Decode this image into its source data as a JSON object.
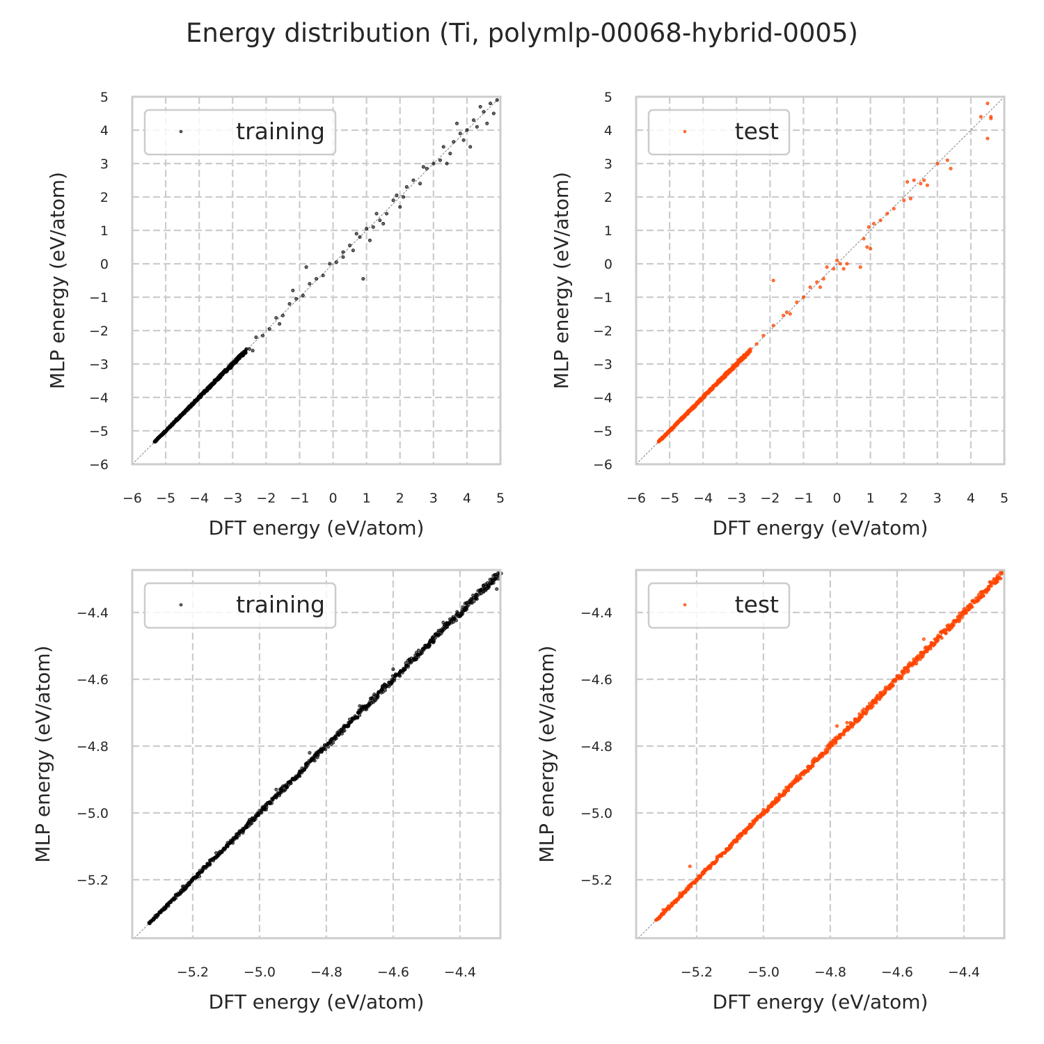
{
  "figure": {
    "title": "Energy distribution (Ti, polymlp-00068-hybrid-0005)"
  },
  "colors": {
    "training": "#000000",
    "test": "#ff4500",
    "grid": "#cccccc",
    "spine": "#cccccc",
    "diagonal": "#808080"
  },
  "chart_data": [
    {
      "type": "scatter",
      "panel": "top-left",
      "series_name": "training",
      "legend": "training",
      "legend_position": "top-left",
      "xlabel": "DFT energy (eV/atom)",
      "ylabel": "MLP energy (eV/atom)",
      "xlim": [
        -6,
        5
      ],
      "ylim": [
        -6,
        5
      ],
      "xticks": [
        "−6",
        "−5",
        "−4",
        "−3",
        "−2",
        "−1",
        "0",
        "1",
        "2",
        "3",
        "4",
        "5"
      ],
      "yticks": [
        "−6",
        "−5",
        "−4",
        "−3",
        "−2",
        "−1",
        "0",
        "1",
        "2",
        "3",
        "4",
        "5"
      ],
      "xtick_values": [
        -6,
        -5,
        -4,
        -3,
        -2,
        -1,
        0,
        1,
        2,
        3,
        4,
        5
      ],
      "ytick_values": [
        -6,
        -5,
        -4,
        -3,
        -2,
        -1,
        0,
        1,
        2,
        3,
        4,
        5
      ],
      "grid": true,
      "points": [
        [
          -5.33,
          -5.33
        ],
        [
          -5.1,
          -5.1
        ],
        [
          -4.8,
          -4.8
        ],
        [
          -4.5,
          -4.5
        ],
        [
          -4.2,
          -4.21
        ],
        [
          -3.9,
          -3.9
        ],
        [
          -3.6,
          -3.61
        ],
        [
          -3.3,
          -3.28
        ],
        [
          -3.0,
          -3.0
        ],
        [
          -2.8,
          -2.75
        ],
        [
          -2.5,
          -2.55
        ],
        [
          -2.3,
          -2.2
        ],
        [
          -2.1,
          -2.15
        ],
        [
          -1.9,
          -1.95
        ],
        [
          -1.7,
          -1.62
        ],
        [
          -1.5,
          -1.55
        ],
        [
          -1.3,
          -1.2
        ],
        [
          -1.1,
          -1.05
        ],
        [
          -0.9,
          -0.95
        ],
        [
          -0.7,
          -0.6
        ],
        [
          -0.5,
          -0.45
        ],
        [
          -0.3,
          -0.35
        ],
        [
          -0.1,
          0.0
        ],
        [
          0.1,
          0.05
        ],
        [
          0.3,
          0.35
        ],
        [
          0.5,
          0.55
        ],
        [
          0.6,
          0.4
        ],
        [
          0.8,
          0.8
        ],
        [
          0.9,
          -0.45
        ],
        [
          1.0,
          1.05
        ],
        [
          1.2,
          1.1
        ],
        [
          1.3,
          1.5
        ],
        [
          1.4,
          1.3
        ],
        [
          1.6,
          1.5
        ],
        [
          1.8,
          1.9
        ],
        [
          1.9,
          2.05
        ],
        [
          2.1,
          2.0
        ],
        [
          2.2,
          2.3
        ],
        [
          2.4,
          2.5
        ],
        [
          2.6,
          2.4
        ],
        [
          2.8,
          2.85
        ],
        [
          3.0,
          3.0
        ],
        [
          3.2,
          3.1
        ],
        [
          3.3,
          3.5
        ],
        [
          3.5,
          3.3
        ],
        [
          3.6,
          3.65
        ],
        [
          3.8,
          3.9
        ],
        [
          3.9,
          3.7
        ],
        [
          4.0,
          4.0
        ],
        [
          4.1,
          3.5
        ],
        [
          4.2,
          4.3
        ],
        [
          4.3,
          4.1
        ],
        [
          4.5,
          4.55
        ],
        [
          4.6,
          4.2
        ],
        [
          4.7,
          4.8
        ],
        [
          4.8,
          4.5
        ],
        [
          4.9,
          4.9
        ],
        [
          -0.8,
          -0.1
        ],
        [
          -1.2,
          -0.8
        ],
        [
          0.3,
          0.2
        ],
        [
          1.5,
          1.2
        ],
        [
          2.0,
          1.7
        ],
        [
          3.4,
          3.0
        ],
        [
          -2.4,
          -2.6
        ],
        [
          -1.6,
          -1.8
        ],
        [
          0.7,
          0.9
        ],
        [
          1.1,
          0.7
        ],
        [
          2.7,
          2.9
        ],
        [
          4.4,
          4.7
        ],
        [
          3.7,
          4.2
        ]
      ]
    },
    {
      "type": "scatter",
      "panel": "top-right",
      "series_name": "test",
      "legend": "test",
      "legend_position": "top-left",
      "xlabel": "DFT energy (eV/atom)",
      "ylabel": "MLP energy (eV/atom)",
      "xlim": [
        -6,
        5
      ],
      "ylim": [
        -6,
        5
      ],
      "xticks": [
        "−6",
        "−5",
        "−4",
        "−3",
        "−2",
        "−1",
        "0",
        "1",
        "2",
        "3",
        "4",
        "5"
      ],
      "yticks": [
        "−6",
        "−5",
        "−4",
        "−3",
        "−2",
        "−1",
        "0",
        "1",
        "2",
        "3",
        "4",
        "5"
      ],
      "xtick_values": [
        -6,
        -5,
        -4,
        -3,
        -2,
        -1,
        0,
        1,
        2,
        3,
        4,
        5
      ],
      "ytick_values": [
        -6,
        -5,
        -4,
        -3,
        -2,
        -1,
        0,
        1,
        2,
        3,
        4,
        5
      ],
      "grid": true,
      "points": [
        [
          -5.33,
          -5.33
        ],
        [
          -5.1,
          -5.1
        ],
        [
          -4.8,
          -4.8
        ],
        [
          -4.5,
          -4.5
        ],
        [
          -4.2,
          -4.2
        ],
        [
          -3.9,
          -3.9
        ],
        [
          -3.6,
          -3.6
        ],
        [
          -3.3,
          -3.3
        ],
        [
          -3.0,
          -3.0
        ],
        [
          -2.7,
          -2.7
        ],
        [
          -2.4,
          -2.4
        ],
        [
          -2.2,
          -2.15
        ],
        [
          -1.9,
          -1.85
        ],
        [
          -1.6,
          -1.55
        ],
        [
          -1.5,
          -1.45
        ],
        [
          -1.4,
          -1.5
        ],
        [
          -1.2,
          -1.15
        ],
        [
          -1.0,
          -1.0
        ],
        [
          -1.9,
          -0.5
        ],
        [
          -0.8,
          -0.7
        ],
        [
          -0.6,
          -0.55
        ],
        [
          -0.4,
          -0.45
        ],
        [
          -0.5,
          -0.7
        ],
        [
          -0.3,
          -0.1
        ],
        [
          -0.1,
          -0.15
        ],
        [
          0.0,
          0.1
        ],
        [
          0.2,
          -0.15
        ],
        [
          0.3,
          0.0
        ],
        [
          0.1,
          0.0
        ],
        [
          0.7,
          -0.1
        ],
        [
          0.8,
          0.75
        ],
        [
          0.9,
          0.5
        ],
        [
          1.0,
          0.45
        ],
        [
          0.95,
          1.1
        ],
        [
          1.1,
          1.2
        ],
        [
          1.3,
          1.3
        ],
        [
          1.5,
          1.5
        ],
        [
          1.7,
          1.65
        ],
        [
          2.0,
          1.9
        ],
        [
          2.1,
          2.45
        ],
        [
          2.3,
          2.5
        ],
        [
          2.2,
          1.95
        ],
        [
          2.5,
          2.4
        ],
        [
          2.6,
          2.5
        ],
        [
          2.7,
          2.35
        ],
        [
          3.0,
          3.0
        ],
        [
          3.3,
          3.1
        ],
        [
          3.4,
          2.85
        ],
        [
          4.5,
          4.8
        ],
        [
          4.6,
          4.4
        ],
        [
          4.6,
          4.35
        ],
        [
          4.5,
          3.75
        ],
        [
          4.3,
          4.4
        ]
      ]
    },
    {
      "type": "scatter",
      "panel": "bottom-left",
      "series_name": "training",
      "legend": "training",
      "legend_position": "top-left",
      "xlabel": "DFT energy (eV/atom)",
      "ylabel": "MLP energy (eV/atom)",
      "xlim": [
        -5.381,
        -4.279
      ],
      "ylim": [
        -5.375,
        -4.273
      ],
      "xticks": [
        "−5.2",
        "−5.0",
        "−4.8",
        "−4.6",
        "−4.4"
      ],
      "yticks": [
        "−5.2",
        "−5.0",
        "−4.8",
        "−4.6",
        "−4.4"
      ],
      "xtick_values": [
        -5.2,
        -5.0,
        -4.8,
        -4.6,
        -4.4
      ],
      "ytick_values": [
        -5.2,
        -5.0,
        -4.8,
        -4.6,
        -4.4
      ],
      "grid": true,
      "dense_line_range": [
        -5.33,
        -4.28
      ],
      "points": [
        [
          -5.33,
          -5.33
        ],
        [
          -5.28,
          -5.28
        ],
        [
          -5.23,
          -5.22
        ],
        [
          -5.18,
          -5.19
        ],
        [
          -5.13,
          -5.12
        ],
        [
          -5.08,
          -5.09
        ],
        [
          -5.03,
          -5.02
        ],
        [
          -4.98,
          -4.99
        ],
        [
          -4.93,
          -4.92
        ],
        [
          -4.88,
          -4.89
        ],
        [
          -4.83,
          -4.82
        ],
        [
          -4.78,
          -4.79
        ],
        [
          -4.73,
          -4.72
        ],
        [
          -4.68,
          -4.69
        ],
        [
          -4.63,
          -4.62
        ],
        [
          -4.58,
          -4.59
        ],
        [
          -4.53,
          -4.52
        ],
        [
          -4.48,
          -4.49
        ],
        [
          -4.43,
          -4.42
        ],
        [
          -4.38,
          -4.39
        ],
        [
          -4.33,
          -4.32
        ],
        [
          -4.3,
          -4.29
        ],
        [
          -4.29,
          -4.33
        ],
        [
          -4.45,
          -4.43
        ],
        [
          -4.6,
          -4.57
        ],
        [
          -4.7,
          -4.68
        ],
        [
          -4.85,
          -4.82
        ],
        [
          -4.95,
          -4.93
        ],
        [
          -5.05,
          -5.06
        ]
      ]
    },
    {
      "type": "scatter",
      "panel": "bottom-right",
      "series_name": "test",
      "legend": "test",
      "legend_position": "top-left",
      "xlabel": "DFT energy (eV/atom)",
      "ylabel": "MLP energy (eV/atom)",
      "xlim": [
        -5.381,
        -4.279
      ],
      "ylim": [
        -5.375,
        -4.273
      ],
      "xticks": [
        "−5.2",
        "−5.0",
        "−4.8",
        "−4.6",
        "−4.4"
      ],
      "yticks": [
        "−5.2",
        "−5.0",
        "−4.8",
        "−4.6",
        "−4.4"
      ],
      "xtick_values": [
        -5.2,
        -5.0,
        -4.8,
        -4.6,
        -4.4
      ],
      "ytick_values": [
        -5.2,
        -5.0,
        -4.8,
        -4.6,
        -4.4
      ],
      "grid": true,
      "dense_line_range": [
        -5.32,
        -4.285
      ],
      "points": [
        [
          -5.32,
          -5.32
        ],
        [
          -5.3,
          -5.29
        ],
        [
          -5.27,
          -5.27
        ],
        [
          -5.25,
          -5.24
        ],
        [
          -5.2,
          -5.2
        ],
        [
          -5.22,
          -5.16
        ],
        [
          -5.15,
          -5.15
        ],
        [
          -5.1,
          -5.1
        ],
        [
          -5.05,
          -5.05
        ],
        [
          -5.0,
          -4.99
        ],
        [
          -4.95,
          -4.95
        ],
        [
          -4.9,
          -4.89
        ],
        [
          -4.85,
          -4.84
        ],
        [
          -4.8,
          -4.79
        ],
        [
          -4.75,
          -4.73
        ],
        [
          -4.78,
          -4.74
        ],
        [
          -4.7,
          -4.69
        ],
        [
          -4.65,
          -4.64
        ],
        [
          -4.6,
          -4.59
        ],
        [
          -4.55,
          -4.54
        ],
        [
          -4.52,
          -4.48
        ],
        [
          -4.5,
          -4.5
        ],
        [
          -4.45,
          -4.44
        ],
        [
          -4.4,
          -4.39
        ],
        [
          -4.35,
          -4.34
        ],
        [
          -4.3,
          -4.3
        ],
        [
          -4.286,
          -4.284
        ]
      ]
    }
  ]
}
